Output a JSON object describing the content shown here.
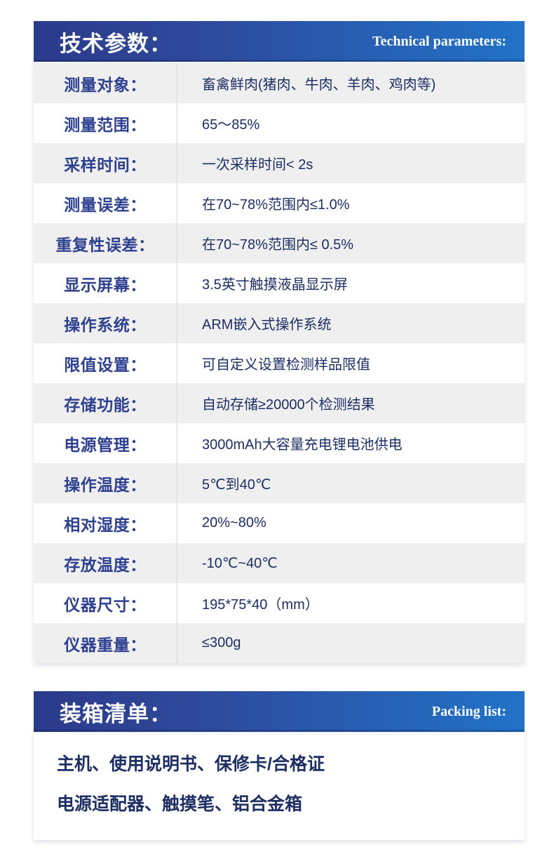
{
  "colors": {
    "header_gradient_left": "#2c3a8a",
    "header_gradient_right": "#2173c8",
    "header_text": "#ffffff",
    "label_text": "#2e4090",
    "value_text": "#1d2e63",
    "row_alt_background": "#efefef",
    "row_background": "#ffffff",
    "divider": "#d9d9d9",
    "page_background": "#ffffff"
  },
  "spec_section": {
    "title_zh": "技术参数：",
    "title_en": "Technical parameters:",
    "rows": [
      {
        "label": "测量对象：",
        "value": "畜禽鲜肉(猪肉、牛肉、羊肉、鸡肉等)"
      },
      {
        "label": "测量范围：",
        "value": "65～85%"
      },
      {
        "label": "采样时间：",
        "value": "一次采样时间< 2s"
      },
      {
        "label": "测量误差：",
        "value": "在70~78%范围内≤1.0%"
      },
      {
        "label": "重复性误差：",
        "value": "在70~78%范围内≤ 0.5%"
      },
      {
        "label": "显示屏幕：",
        "value": "3.5英寸触摸液晶显示屏"
      },
      {
        "label": "操作系统：",
        "value": "ARM嵌入式操作系统"
      },
      {
        "label": "限值设置：",
        "value": "可自定义设置检测样品限值"
      },
      {
        "label": "存储功能：",
        "value": "自动存储≥20000个检测结果"
      },
      {
        "label": "电源管理：",
        "value": "3000mAh大容量充电锂电池供电"
      },
      {
        "label": "操作温度：",
        "value": "5℃到40℃"
      },
      {
        "label": "相对湿度：",
        "value": "20%~80%"
      },
      {
        "label": "存放温度：",
        "value": "-10℃~40℃"
      },
      {
        "label": "仪器尺寸：",
        "value": "195*75*40（mm）"
      },
      {
        "label": "仪器重量：",
        "value": "≤300g"
      }
    ]
  },
  "packing_section": {
    "title_zh": "装箱清单：",
    "title_en": "Packing list:",
    "lines": [
      "主机、使用说明书、保修卡/合格证",
      "电源适配器、触摸笔、铝合金箱"
    ]
  }
}
